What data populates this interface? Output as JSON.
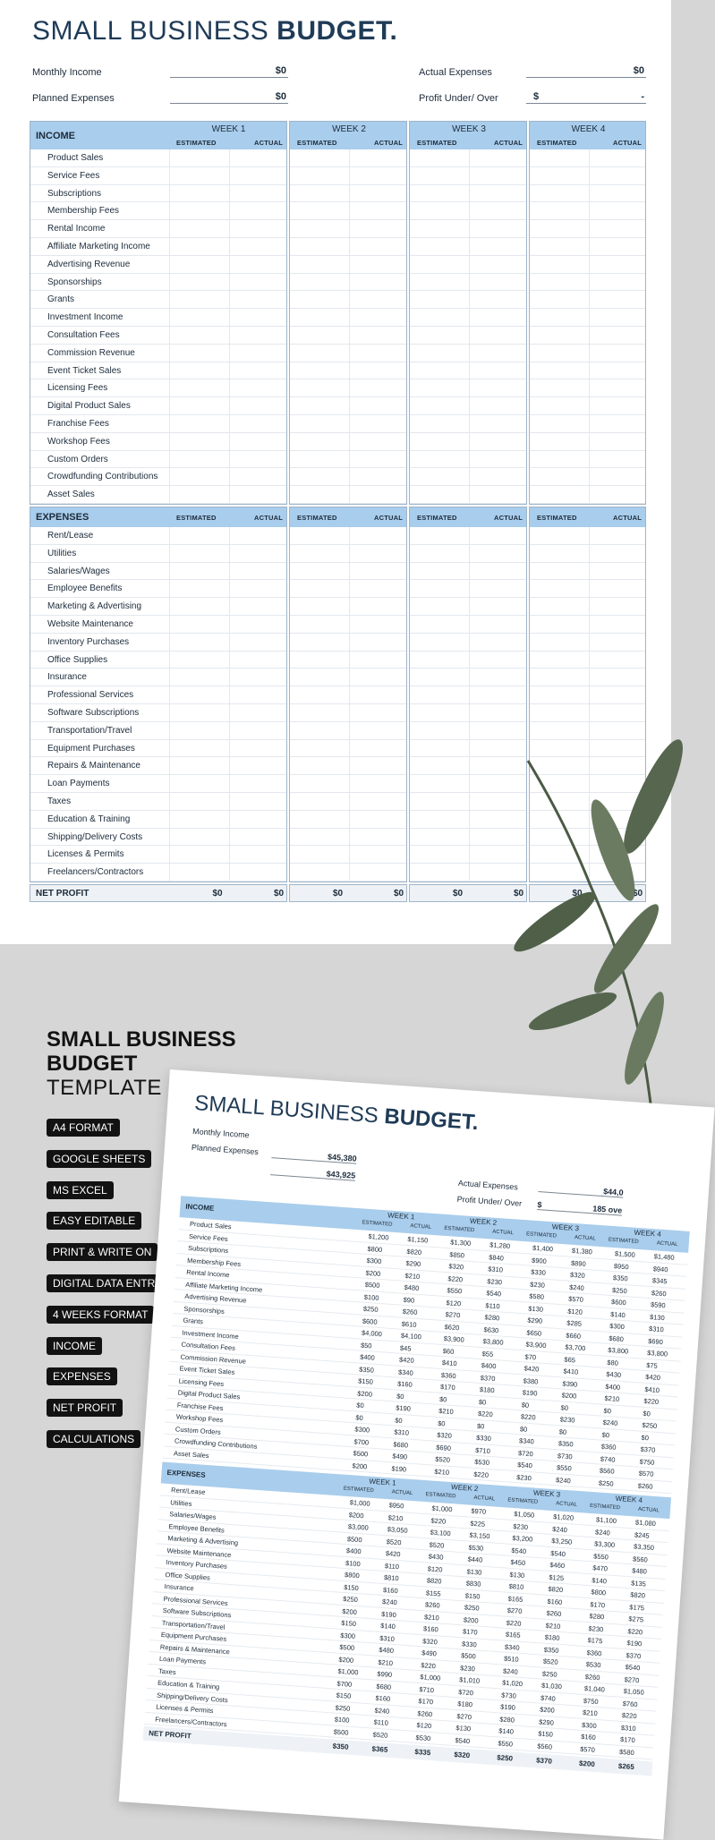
{
  "title": {
    "light": "SMALL BUSINESS ",
    "bold": "BUDGET."
  },
  "summary": {
    "monthly_income_label": "Monthly Income",
    "monthly_income_value": "$0",
    "planned_expenses_label": "Planned Expenses",
    "planned_expenses_value": "$0",
    "actual_expenses_label": "Actual Expenses",
    "actual_expenses_value": "$0",
    "profit_label": "Profit Under/ Over",
    "profit_currency": "$",
    "profit_value": "-"
  },
  "weeks": [
    "WEEK 1",
    "WEEK 2",
    "WEEK 3",
    "WEEK 4"
  ],
  "col_estimated": "ESTIMATED",
  "col_actual": "ACTUAL",
  "income": {
    "label": "INCOME",
    "items": [
      "Product Sales",
      "Service Fees",
      "Subscriptions",
      "Membership Fees",
      "Rental Income",
      "Affiliate Marketing Income",
      "Advertising Revenue",
      "Sponsorships",
      "Grants",
      "Investment Income",
      "Consultation Fees",
      "Commission Revenue",
      "Event Ticket Sales",
      "Licensing Fees",
      "Digital Product Sales",
      "Franchise Fees",
      "Workshop Fees",
      "Custom Orders",
      "Crowdfunding Contributions",
      "Asset Sales"
    ]
  },
  "expenses": {
    "label": "EXPENSES",
    "items": [
      "Rent/Lease",
      "Utilities",
      "Salaries/Wages",
      "Employee Benefits",
      "Marketing & Advertising",
      "Website Maintenance",
      "Inventory Purchases",
      "Office Supplies",
      "Insurance",
      "Professional Services",
      "Software Subscriptions",
      "Transportation/Travel",
      "Equipment Purchases",
      "Repairs & Maintenance",
      "Loan Payments",
      "Taxes",
      "Education & Training",
      "Shipping/Delivery Costs",
      "Licenses & Permits",
      "Freelancers/Contractors"
    ]
  },
  "net_profit": {
    "label": "NET PROFIT",
    "values": [
      "$0",
      "$0",
      "$0",
      "$0",
      "$0",
      "$0",
      "$0",
      "$0"
    ]
  },
  "promo": {
    "title_line1": "SMALL BUSINESS",
    "title_line2": "BUDGET",
    "title_line3": "TEMPLATE",
    "tags": [
      "A4 FORMAT",
      "GOOGLE SHEETS",
      "MS EXCEL",
      "EASY EDITABLE",
      "PRINT & WRITE ON",
      "DIGITAL DATA ENTRY",
      "4 WEEKS FORMAT",
      "INCOME",
      "EXPENSES",
      "NET PROFIT",
      "CALCULATIONS"
    ]
  },
  "preview": {
    "monthly_income_label": "Monthly Income",
    "planned_expenses_label": "Planned Expenses",
    "planned_expenses_value": "$45,380",
    "second_value": "$43,925",
    "actual_expenses_label": "Actual Expenses",
    "actual_expenses_value": "$44,0",
    "profit_label": "Profit Under/ Over",
    "profit_currency": "$",
    "profit_value": "185 ove",
    "income_values": [
      [
        "$1,200",
        "$1,150",
        "$1,300",
        "$1,280",
        "$1,400",
        "$1,380",
        "$1,500",
        "$1,480"
      ],
      [
        "$800",
        "$820",
        "$850",
        "$840",
        "$900",
        "$890",
        "$950",
        "$940"
      ],
      [
        "$300",
        "$290",
        "$320",
        "$310",
        "$330",
        "$320",
        "$350",
        "$345"
      ],
      [
        "$200",
        "$210",
        "$220",
        "$230",
        "$230",
        "$240",
        "$250",
        "$260"
      ],
      [
        "$500",
        "$480",
        "$550",
        "$540",
        "$580",
        "$570",
        "$600",
        "$590"
      ],
      [
        "$100",
        "$90",
        "$120",
        "$110",
        "$130",
        "$120",
        "$140",
        "$130"
      ],
      [
        "$250",
        "$260",
        "$270",
        "$280",
        "$290",
        "$285",
        "$300",
        "$310"
      ],
      [
        "$600",
        "$610",
        "$620",
        "$630",
        "$650",
        "$660",
        "$680",
        "$690"
      ],
      [
        "$4,000",
        "$4,100",
        "$3,900",
        "$3,800",
        "$3,900",
        "$3,700",
        "$3,800",
        "$3,800"
      ],
      [
        "$50",
        "$45",
        "$60",
        "$55",
        "$70",
        "$65",
        "$80",
        "$75"
      ],
      [
        "$400",
        "$420",
        "$410",
        "$400",
        "$420",
        "$410",
        "$430",
        "$420"
      ],
      [
        "$350",
        "$340",
        "$360",
        "$370",
        "$380",
        "$390",
        "$400",
        "$410"
      ],
      [
        "$150",
        "$160",
        "$170",
        "$180",
        "$190",
        "$200",
        "$210",
        "$220"
      ],
      [
        "$200",
        "$0",
        "$0",
        "$0",
        "$0",
        "$0",
        "$0",
        "$0"
      ],
      [
        "$0",
        "$190",
        "$210",
        "$220",
        "$220",
        "$230",
        "$240",
        "$250"
      ],
      [
        "$0",
        "$0",
        "$0",
        "$0",
        "$0",
        "$0",
        "$0",
        "$0"
      ],
      [
        "$300",
        "$310",
        "$320",
        "$330",
        "$340",
        "$350",
        "$360",
        "$370"
      ],
      [
        "$700",
        "$680",
        "$690",
        "$710",
        "$720",
        "$730",
        "$740",
        "$750"
      ],
      [
        "$500",
        "$490",
        "$520",
        "$530",
        "$540",
        "$550",
        "$560",
        "$570"
      ],
      [
        "$200",
        "$190",
        "$210",
        "$220",
        "$230",
        "$240",
        "$250",
        "$260"
      ]
    ],
    "expense_values": [
      [
        "$1,000",
        "$950",
        "$1,000",
        "$970",
        "$1,050",
        "$1,020",
        "$1,100",
        "$1,080"
      ],
      [
        "$200",
        "$210",
        "$220",
        "$225",
        "$230",
        "$240",
        "$240",
        "$245"
      ],
      [
        "$3,000",
        "$3,050",
        "$3,100",
        "$3,150",
        "$3,200",
        "$3,250",
        "$3,300",
        "$3,350"
      ],
      [
        "$500",
        "$520",
        "$520",
        "$530",
        "$540",
        "$540",
        "$550",
        "$560"
      ],
      [
        "$400",
        "$420",
        "$430",
        "$440",
        "$450",
        "$460",
        "$470",
        "$480"
      ],
      [
        "$100",
        "$110",
        "$120",
        "$130",
        "$130",
        "$125",
        "$140",
        "$135"
      ],
      [
        "$800",
        "$810",
        "$820",
        "$830",
        "$810",
        "$820",
        "$800",
        "$820"
      ],
      [
        "$150",
        "$160",
        "$155",
        "$150",
        "$165",
        "$160",
        "$170",
        "$175"
      ],
      [
        "$250",
        "$240",
        "$260",
        "$250",
        "$270",
        "$260",
        "$280",
        "$275"
      ],
      [
        "$200",
        "$190",
        "$210",
        "$200",
        "$220",
        "$210",
        "$230",
        "$220"
      ],
      [
        "$150",
        "$140",
        "$160",
        "$170",
        "$165",
        "$180",
        "$175",
        "$190"
      ],
      [
        "$300",
        "$310",
        "$320",
        "$330",
        "$340",
        "$350",
        "$360",
        "$370"
      ],
      [
        "$500",
        "$480",
        "$490",
        "$500",
        "$510",
        "$520",
        "$530",
        "$540"
      ],
      [
        "$200",
        "$210",
        "$220",
        "$230",
        "$240",
        "$250",
        "$260",
        "$270"
      ],
      [
        "$1,000",
        "$990",
        "$1,000",
        "$1,010",
        "$1,020",
        "$1,030",
        "$1,040",
        "$1,050"
      ],
      [
        "$700",
        "$680",
        "$710",
        "$720",
        "$730",
        "$740",
        "$750",
        "$760"
      ],
      [
        "$150",
        "$160",
        "$170",
        "$180",
        "$190",
        "$200",
        "$210",
        "$220"
      ],
      [
        "$250",
        "$240",
        "$260",
        "$270",
        "$280",
        "$290",
        "$300",
        "$310"
      ],
      [
        "$100",
        "$110",
        "$120",
        "$130",
        "$140",
        "$150",
        "$160",
        "$170"
      ],
      [
        "$500",
        "$520",
        "$530",
        "$540",
        "$550",
        "$560",
        "$570",
        "$580"
      ]
    ],
    "net_values": [
      "$350",
      "$365",
      "$335",
      "$320",
      "$250",
      "$370",
      "$200",
      "$265"
    ]
  }
}
